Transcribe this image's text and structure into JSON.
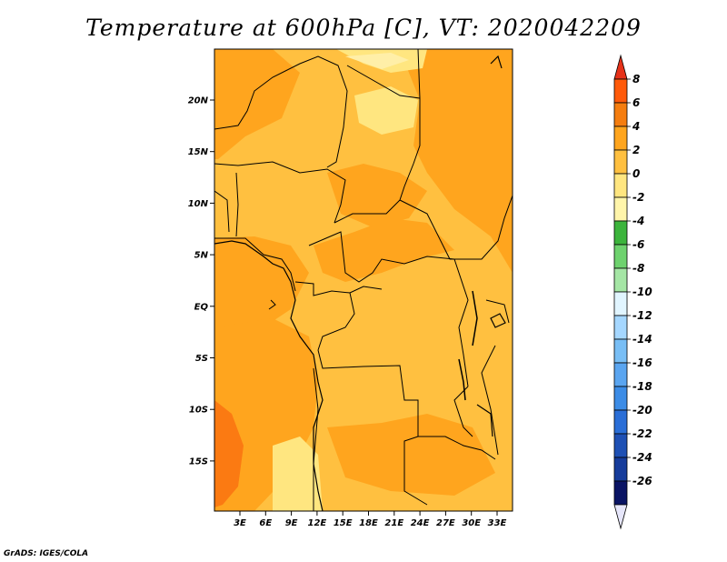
{
  "title": "Temperature at 600hPa [C], VT: 2020042209",
  "credit": "GrADS: IGES/COLA",
  "map": {
    "lat_ticks": [
      "20N",
      "15N",
      "10N",
      "5N",
      "EQ",
      "5S",
      "10S",
      "15S"
    ],
    "lon_ticks": [
      "3E",
      "6E",
      "9E",
      "12E",
      "15E",
      "18E",
      "21E",
      "24E",
      "27E",
      "30E",
      "33E"
    ]
  },
  "colors": {
    "c_m2_0": "#ffe680",
    "c_0_2": "#ffc040",
    "c_2_4": "#ffa51e",
    "c_4_6": "#fb7a12",
    "c_m4_m2": "#ffefa8"
  },
  "colorbar": {
    "labels": [
      "8",
      "6",
      "4",
      "2",
      "0",
      "-2",
      "-4",
      "-6",
      "-8",
      "-10",
      "-12",
      "-14",
      "-16",
      "-18",
      "-20",
      "-22",
      "-24",
      "-26"
    ],
    "colors": [
      "#e63219",
      "#ff5a0a",
      "#f57d0f",
      "#ffa51e",
      "#ffc040",
      "#ffe680",
      "#fff5aa",
      "#3cb43c",
      "#6ed26e",
      "#a5e6a5",
      "#e1f5ff",
      "#a5d7ff",
      "#78bef5",
      "#5aa5f0",
      "#3c8ce6",
      "#2a6ed7",
      "#1e50b4",
      "#163c9b",
      "#0a1464",
      "#e6e6fa"
    ]
  }
}
